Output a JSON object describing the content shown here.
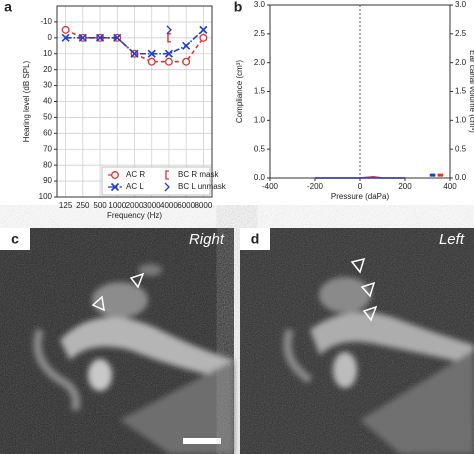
{
  "chart_data": [
    {
      "type": "line",
      "panel_label": "a",
      "x_label": "Frequency (Hz)",
      "y_label": "Hearing level (dB SPL)",
      "categories": [
        "125",
        "250",
        "500",
        "1000",
        "2000",
        "3000",
        "4000",
        "6000",
        "8000"
      ],
      "ylim": [
        -20,
        100
      ],
      "y_inverted": true,
      "yticks": [
        -10,
        0,
        10,
        20,
        30,
        40,
        50,
        60,
        70,
        80,
        90,
        100
      ],
      "grid": true,
      "legend": "lower right",
      "series": [
        {
          "name": "AC R",
          "color": "#e8302a",
          "marker": "circle",
          "line_style": "dashed",
          "values": [
            -5,
            0,
            0,
            0,
            10,
            15,
            15,
            15,
            0
          ]
        },
        {
          "name": "AC L",
          "color": "#1f3fd0",
          "marker": "x",
          "line_style": "dashdot",
          "values": [
            0,
            0,
            0,
            0,
            10,
            10,
            10,
            5,
            -5
          ]
        },
        {
          "name": "BC R mask",
          "color": "#e8302a",
          "marker": "bracket",
          "line_style": "none",
          "values": [
            null,
            null,
            null,
            null,
            null,
            null,
            0,
            null,
            null
          ]
        },
        {
          "name": "BC L unmask",
          "color": "#1f3fd0",
          "marker": "caret",
          "line_style": "none",
          "values": [
            null,
            null,
            null,
            null,
            null,
            null,
            -5,
            null,
            null
          ]
        }
      ]
    },
    {
      "type": "line",
      "panel_label": "b",
      "x_label": "Pressure (daPa)",
      "y_label": "Compliance (cm³)",
      "y2_label": "Ear canal volume (cm³)",
      "xlim": [
        -400,
        400
      ],
      "xticks": [
        -400,
        -200,
        0,
        200,
        400
      ],
      "ylim": [
        0,
        3
      ],
      "yticks": [
        {
          "value": 0,
          "label": "0.0"
        },
        {
          "value": 0.5,
          "label": "0.5"
        },
        {
          "value": 1,
          "label": "1.0"
        },
        {
          "value": 1.5,
          "label": "1.5"
        },
        {
          "value": 2,
          "label": "2.0"
        },
        {
          "value": 2.5,
          "label": "2.5"
        },
        {
          "value": 3,
          "label": "3.0"
        }
      ],
      "y2lim": [
        0,
        3
      ],
      "y2ticks": [
        {
          "value": 0,
          "label": "0.0"
        },
        {
          "value": 0.5,
          "label": "0.5"
        },
        {
          "value": 1,
          "label": "1.0"
        },
        {
          "value": 1.5,
          "label": "1.5"
        },
        {
          "value": 2,
          "label": "2.0"
        },
        {
          "value": 2.5,
          "label": "2.5"
        },
        {
          "value": 3,
          "label": "3.0"
        }
      ],
      "grid": false,
      "zero_lines": true,
      "series": [
        {
          "color": "#e8302a",
          "line_style": "solid",
          "x": [
            -200,
            0,
            60,
            80,
            100,
            200
          ],
          "values": [
            0,
            0,
            0.02,
            0.01,
            0,
            0
          ]
        },
        {
          "color": "#1f3fd0",
          "line_style": "solid",
          "x": [
            -200,
            0,
            100,
            200
          ],
          "values": [
            0,
            0,
            0,
            0
          ]
        },
        {
          "color": "#1f3fd0",
          "line_style": "solid",
          "axis": "y2",
          "x": [
            310,
            335
          ],
          "values": [
            0.05,
            0.05
          ]
        },
        {
          "color": "#e8302a",
          "line_style": "solid",
          "axis": "y2",
          "x": [
            345,
            370
          ],
          "values": [
            0.05,
            0.05
          ]
        }
      ]
    }
  ],
  "images": [
    {
      "panel_label": "c",
      "label": "Right"
    },
    {
      "panel_label": "d",
      "label": "Left"
    }
  ]
}
